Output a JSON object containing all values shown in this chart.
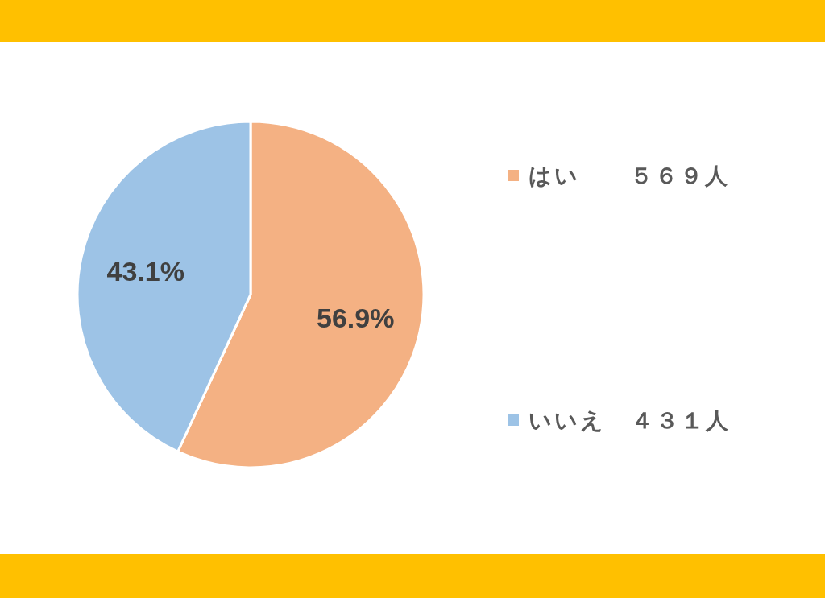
{
  "chart_data": {
    "type": "pie",
    "categories": [
      "はい　　５６９人",
      "いいえ　４３１人"
    ],
    "values": [
      56.9,
      43.1
    ],
    "colors": [
      "#f4b183",
      "#9dc3e6"
    ],
    "value_labels": [
      "56.9%",
      "43.1%"
    ],
    "legend": "right"
  }
}
